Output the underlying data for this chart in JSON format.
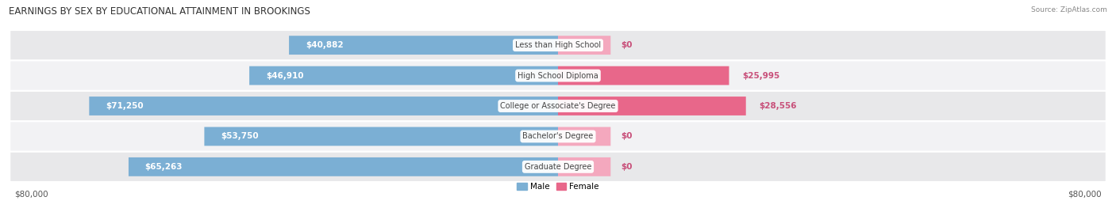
{
  "title": "EARNINGS BY SEX BY EDUCATIONAL ATTAINMENT IN BROOKINGS",
  "source": "Source: ZipAtlas.com",
  "categories": [
    "Less than High School",
    "High School Diploma",
    "College or Associate's Degree",
    "Bachelor's Degree",
    "Graduate Degree"
  ],
  "male_values": [
    40882,
    46910,
    71250,
    53750,
    65263
  ],
  "female_values": [
    0,
    25995,
    28556,
    0,
    0
  ],
  "female_display_values": [
    0,
    25995,
    28556,
    0,
    0
  ],
  "female_stub": 8000,
  "male_color": "#7bafd4",
  "female_color_full": "#e8678a",
  "female_color_stub": "#f4a8be",
  "male_label_color_inside": "#ffffff",
  "male_label_color_outside": "#7bafd4",
  "female_label_color": "#c8507a",
  "max_value": 80000,
  "bar_height": 0.62,
  "row_bg_even": "#e8e8ea",
  "row_bg_odd": "#f2f2f4",
  "fig_bg": "#ffffff",
  "title_fontsize": 8.5,
  "label_fontsize": 7.5,
  "tick_fontsize": 7.5,
  "legend_fontsize": 7.5
}
